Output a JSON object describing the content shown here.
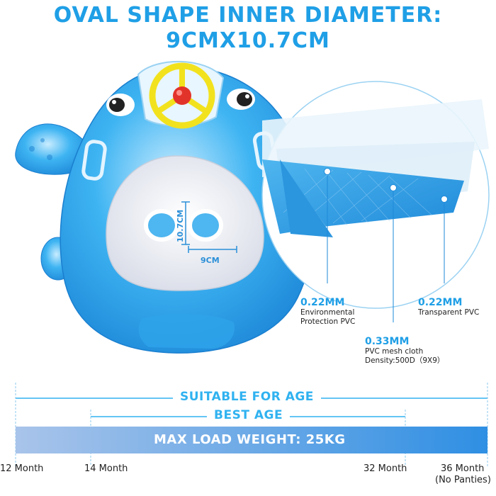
{
  "title_line1": "OVAL SHAPE INNER DIAMETER:",
  "title_line2": "9CMX10.7CM",
  "inner_measure": {
    "height": "10.7CM",
    "width": "9CM"
  },
  "layers": [
    {
      "thickness": "0.22MM",
      "desc_lines": [
        "Environmental",
        "Protection PVC"
      ]
    },
    {
      "thickness": "0.33MM",
      "desc_lines": [
        "PVC mesh cloth",
        "Density:500D（9X9）"
      ]
    },
    {
      "thickness": "0.22MM",
      "desc_lines": [
        "Transparent PVC"
      ]
    }
  ],
  "age": {
    "suitable_label": "SUITABLE FOR AGE",
    "best_label": "BEST AGE",
    "max_load_label": "MAX LOAD WEIGHT: 25KG",
    "months": [
      {
        "label": "12 Month"
      },
      {
        "label": "14 Month"
      },
      {
        "label": "32 Month"
      },
      {
        "label": "36 Month",
        "note": "(No Panties)"
      }
    ]
  },
  "colors": {
    "accent": "#1f9fe6",
    "float_blue": "#2aa7ec",
    "float_light": "#8fd3f7",
    "age_text": "#30b2f0",
    "bar_left": "#a9c4ea",
    "bar_right": "#2f8fe3"
  },
  "icons": {
    "float": "fish-shaped-baby-swim-float",
    "steering_wheel": "steering-wheel-icon",
    "magnifier": "magnifier-circle"
  }
}
